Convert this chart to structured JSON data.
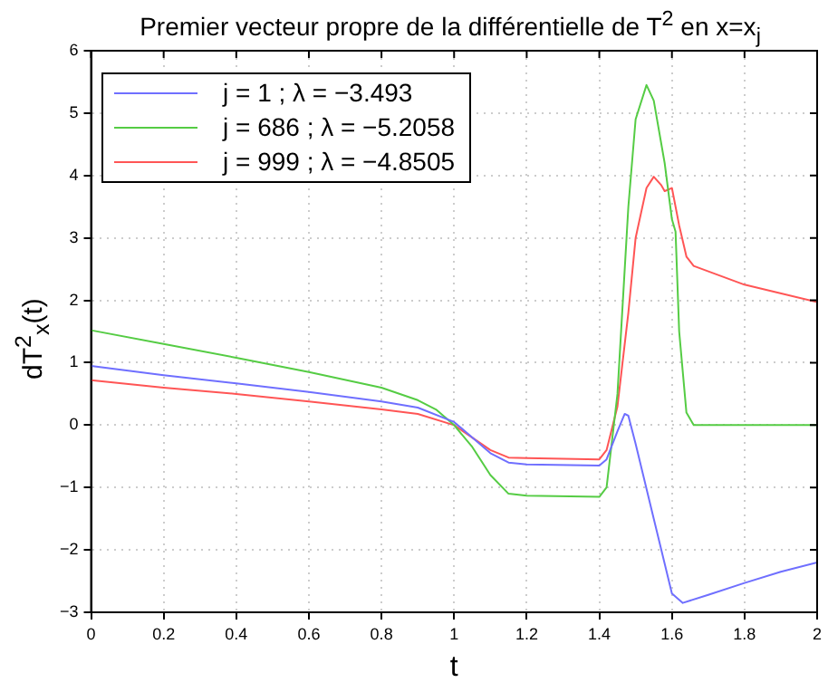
{
  "chart_data": {
    "type": "line",
    "title": "Premier vecteur propre de la différentielle de T$^{2}$ en x=x$_{j}$",
    "xlabel": "t",
    "ylabel": "dT$^{2}$$_{x}$(t)",
    "xlim": [
      0,
      2
    ],
    "xticks": [
      0,
      0.2,
      0.4,
      0.6,
      0.8,
      1,
      1.2,
      1.4,
      1.6,
      1.8,
      2
    ],
    "ylim": [
      -3,
      6
    ],
    "yticks": [
      -3,
      -2,
      -1,
      0,
      1,
      2,
      3,
      4,
      5,
      6
    ],
    "grid": true,
    "legend": "top left",
    "marker": "none",
    "line_style": "solid",
    "series": [
      {
        "name": "j = 1 ; λ = −3.493",
        "color": "#6f6fff",
        "x": [
          0,
          0.2,
          0.4,
          0.6,
          0.8,
          0.9,
          1.0,
          1.05,
          1.1,
          1.15,
          1.2,
          1.4,
          1.42,
          1.45,
          1.47,
          1.48,
          1.5,
          1.55,
          1.6,
          1.63,
          1.7,
          1.8,
          1.9,
          2
        ],
        "values": [
          0.95,
          0.8,
          0.67,
          0.53,
          0.38,
          0.28,
          0.05,
          -0.2,
          -0.45,
          -0.6,
          -0.63,
          -0.65,
          -0.55,
          -0.1,
          0.18,
          0.15,
          -0.3,
          -1.5,
          -2.7,
          -2.85,
          -2.72,
          -2.53,
          -2.35,
          -2.2
        ]
      },
      {
        "name": "j = 686 ; λ = −5.2058",
        "color": "#55cc44",
        "x": [
          0,
          0.2,
          0.4,
          0.6,
          0.8,
          0.9,
          0.95,
          1.0,
          1.05,
          1.1,
          1.15,
          1.2,
          1.4,
          1.42,
          1.45,
          1.48,
          1.5,
          1.53,
          1.55,
          1.58,
          1.6,
          1.61,
          1.62,
          1.64,
          1.66,
          1.8,
          2
        ],
        "values": [
          1.52,
          1.3,
          1.08,
          0.85,
          0.6,
          0.4,
          0.25,
          0.0,
          -0.35,
          -0.8,
          -1.1,
          -1.13,
          -1.15,
          -1.0,
          0.5,
          3.5,
          4.9,
          5.45,
          5.2,
          4.2,
          3.3,
          3.1,
          1.5,
          0.2,
          0.0,
          0,
          0
        ]
      },
      {
        "name": "j = 999 ; λ = −4.8505",
        "color": "#ff5555",
        "x": [
          0,
          0.2,
          0.4,
          0.6,
          0.8,
          0.9,
          1.0,
          1.05,
          1.1,
          1.15,
          1.2,
          1.4,
          1.42,
          1.45,
          1.48,
          1.5,
          1.53,
          1.55,
          1.57,
          1.58,
          1.6,
          1.62,
          1.64,
          1.66,
          1.8,
          2
        ],
        "values": [
          0.72,
          0.6,
          0.5,
          0.38,
          0.25,
          0.18,
          0.0,
          -0.2,
          -0.4,
          -0.52,
          -0.53,
          -0.55,
          -0.4,
          0.3,
          1.8,
          3.0,
          3.8,
          3.98,
          3.85,
          3.75,
          3.8,
          3.2,
          2.7,
          2.55,
          2.25,
          1.97
        ]
      }
    ]
  }
}
